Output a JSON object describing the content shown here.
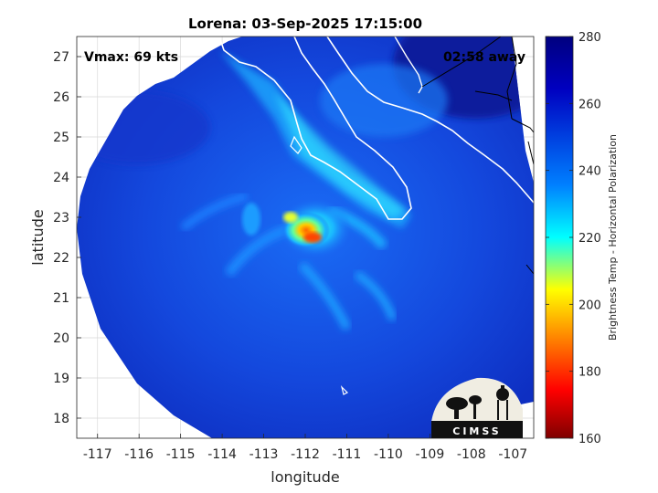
{
  "title": "Lorena: 03-Sep-2025 17:15:00",
  "vmax_label": "Vmax: 69 kts",
  "time_away_label": "02:58 away",
  "xlabel": "longitude",
  "ylabel": "latitude",
  "colorbar_label": "Brightness Temp - Horizontal Polarization",
  "logo_text": "CIMSS",
  "chart_data": {
    "type": "heatmap",
    "xlim": [
      -117.5,
      -106.5
    ],
    "ylim": [
      17.5,
      27.5
    ],
    "x_ticks": [
      "-117",
      "-116",
      "-115",
      "-114",
      "-113",
      "-112",
      "-111",
      "-110",
      "-109",
      "-108",
      "-107"
    ],
    "y_ticks": [
      "18",
      "19",
      "20",
      "21",
      "22",
      "23",
      "24",
      "25",
      "26",
      "27"
    ],
    "colorbar": {
      "range": [
        160,
        280
      ],
      "ticks": [
        "160",
        "180",
        "200",
        "220",
        "240",
        "260",
        "280"
      ]
    },
    "grid": true,
    "colormap": [
      "#7f0000",
      "#ff0000",
      "#ffff00",
      "#00ffff",
      "#0080ff",
      "#0000c0",
      "#00007f"
    ],
    "storm_center": {
      "lon": -111.8,
      "lat": 22.3
    },
    "swath_center": {
      "lon": -112.3,
      "lat": 22.4
    }
  }
}
